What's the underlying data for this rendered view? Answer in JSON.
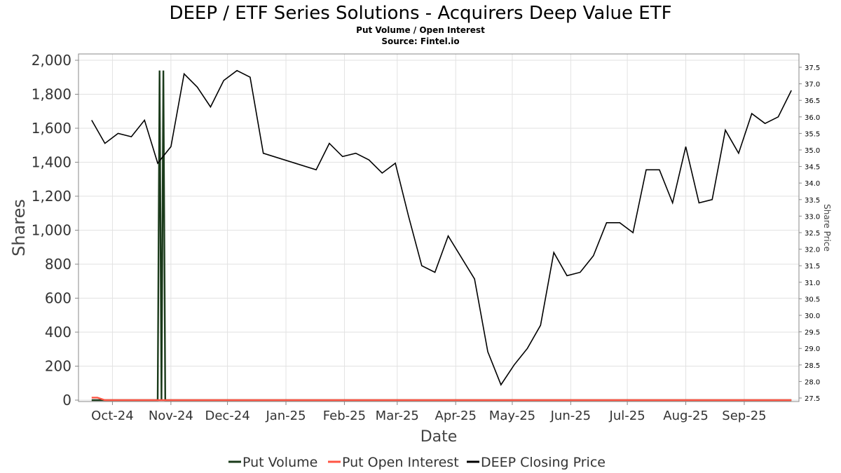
{
  "chart_data": {
    "type": "line",
    "title": "DEEP / ETF Series Solutions - Acquirers Deep Value ETF",
    "subtitle": "Put Volume / Open Interest",
    "source": "Source: Fintel.io",
    "xlabel": "Date",
    "ylabel": "Shares",
    "y2label": "Share Price",
    "ylim": [
      0,
      2000
    ],
    "y2lim": [
      27.5,
      37.5
    ],
    "grid": true,
    "legend_placement": "bottom-center",
    "left_ticks": [
      "0",
      "200",
      "400",
      "600",
      "800",
      "1,000",
      "1,200",
      "1,400",
      "1,600",
      "1,800",
      "2,000"
    ],
    "left_tick_values": [
      0,
      200,
      400,
      600,
      800,
      1000,
      1200,
      1400,
      1600,
      1800,
      2000
    ],
    "right_ticks": [
      "27.5",
      "28.0",
      "28.5",
      "29.0",
      "29.5",
      "30.0",
      "30.5",
      "31.0",
      "31.5",
      "32.0",
      "32.5",
      "33.0",
      "33.5",
      "34.0",
      "34.5",
      "35.0",
      "35.5",
      "36.0",
      "36.5",
      "37.0",
      "37.5"
    ],
    "right_tick_values": [
      27.5,
      28.0,
      28.5,
      29.0,
      29.5,
      30.0,
      30.5,
      31.0,
      31.5,
      32.0,
      32.5,
      33.0,
      33.5,
      34.0,
      34.5,
      35.0,
      35.5,
      36.0,
      36.5,
      37.0,
      37.5
    ],
    "x_ticks": [
      {
        "label": "Oct-24",
        "date": "2024-10-01"
      },
      {
        "label": "Nov-24",
        "date": "2024-11-01"
      },
      {
        "label": "Dec-24",
        "date": "2024-12-01"
      },
      {
        "label": "Jan-25",
        "date": "2025-01-01"
      },
      {
        "label": "Feb-25",
        "date": "2025-02-01"
      },
      {
        "label": "Mar-25",
        "date": "2025-03-01"
      },
      {
        "label": "Apr-25",
        "date": "2025-04-01"
      },
      {
        "label": "May-25",
        "date": "2025-05-01"
      },
      {
        "label": "Jun-25",
        "date": "2025-06-01"
      },
      {
        "label": "Jul-25",
        "date": "2025-07-01"
      },
      {
        "label": "Aug-25",
        "date": "2025-08-01"
      },
      {
        "label": "Sep-25",
        "date": "2025-09-01"
      }
    ],
    "xlim": [
      "2024-09-13",
      "2025-09-30"
    ],
    "series": [
      {
        "name": "Put Volume",
        "color": "#1a3a1a",
        "axis": "left",
        "points": [
          [
            "2024-09-20",
            0
          ],
          [
            "2024-10-25",
            0
          ],
          [
            "2024-10-26",
            1940
          ],
          [
            "2024-10-27",
            0
          ],
          [
            "2024-10-28",
            1940
          ],
          [
            "2024-10-29",
            0
          ],
          [
            "2025-09-26",
            0
          ]
        ]
      },
      {
        "name": "Put Open Interest",
        "color": "#ff5544",
        "axis": "left",
        "points": [
          [
            "2024-09-20",
            15
          ],
          [
            "2024-09-23",
            15
          ],
          [
            "2024-09-27",
            0
          ],
          [
            "2025-09-26",
            0
          ]
        ]
      },
      {
        "name": "DEEP Closing Price",
        "color": "#000000",
        "axis": "right",
        "points": [
          [
            "2024-09-20",
            35.9
          ],
          [
            "2024-09-27",
            35.2
          ],
          [
            "2024-10-04",
            35.5
          ],
          [
            "2024-10-11",
            35.4
          ],
          [
            "2024-10-18",
            35.9
          ],
          [
            "2024-10-25",
            34.6
          ],
          [
            "2024-11-01",
            35.1
          ],
          [
            "2024-11-08",
            37.3
          ],
          [
            "2024-11-15",
            36.9
          ],
          [
            "2024-11-22",
            36.3
          ],
          [
            "2024-11-29",
            37.1
          ],
          [
            "2024-12-06",
            37.4
          ],
          [
            "2024-12-13",
            37.2
          ],
          [
            "2024-12-20",
            34.9
          ],
          [
            "2025-01-17",
            34.4
          ],
          [
            "2025-01-24",
            35.2
          ],
          [
            "2025-01-31",
            34.8
          ],
          [
            "2025-02-07",
            34.9
          ],
          [
            "2025-02-14",
            34.7
          ],
          [
            "2025-02-21",
            34.3
          ],
          [
            "2025-02-28",
            34.6
          ],
          [
            "2025-03-07",
            33.0
          ],
          [
            "2025-03-14",
            31.5
          ],
          [
            "2025-03-21",
            31.3
          ],
          [
            "2025-03-28",
            32.4
          ],
          [
            "2025-04-11",
            31.1
          ],
          [
            "2025-04-18",
            28.9
          ],
          [
            "2025-04-25",
            27.9
          ],
          [
            "2025-05-02",
            28.5
          ],
          [
            "2025-05-09",
            29.0
          ],
          [
            "2025-05-16",
            29.7
          ],
          [
            "2025-05-23",
            31.9
          ],
          [
            "2025-05-30",
            31.2
          ],
          [
            "2025-06-06",
            31.3
          ],
          [
            "2025-06-13",
            31.8
          ],
          [
            "2025-06-20",
            32.8
          ],
          [
            "2025-06-27",
            32.8
          ],
          [
            "2025-07-04",
            32.5
          ],
          [
            "2025-07-11",
            34.4
          ],
          [
            "2025-07-18",
            34.4
          ],
          [
            "2025-07-25",
            33.4
          ],
          [
            "2025-08-01",
            35.1
          ],
          [
            "2025-08-08",
            33.4
          ],
          [
            "2025-08-15",
            33.5
          ],
          [
            "2025-08-22",
            35.6
          ],
          [
            "2025-08-29",
            34.9
          ],
          [
            "2025-09-05",
            36.1
          ],
          [
            "2025-09-12",
            35.8
          ],
          [
            "2025-09-19",
            36.0
          ],
          [
            "2025-09-26",
            36.8
          ]
        ]
      }
    ]
  }
}
